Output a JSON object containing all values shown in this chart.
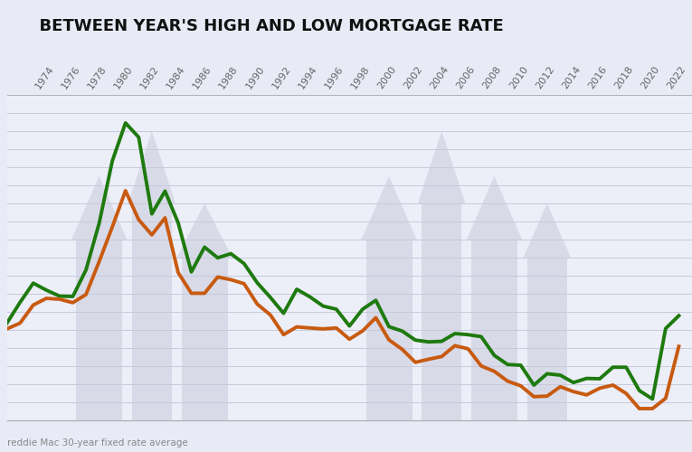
{
  "title": "  BETWEEN YEAR'S HIGH AND LOW MORTGAGE RATE",
  "source_label": "reddie Mac 30-year fixed rate average",
  "bg_color": "#e8eaf6",
  "plot_bg_color": "#eceef8",
  "title_color": "#111111",
  "grid_color": "#c8cadc",
  "high_color": "#1e7a0e",
  "low_color": "#c85a10",
  "line_width": 2.8,
  "years": [
    1972,
    1973,
    1974,
    1975,
    1976,
    1977,
    1978,
    1979,
    1980,
    1981,
    1982,
    1983,
    1984,
    1985,
    1986,
    1987,
    1988,
    1989,
    1990,
    1991,
    1992,
    1993,
    1994,
    1995,
    1996,
    1997,
    1998,
    1999,
    2000,
    2001,
    2002,
    2003,
    2004,
    2005,
    2006,
    2007,
    2008,
    2009,
    2010,
    2011,
    2012,
    2013,
    2014,
    2015,
    2016,
    2017,
    2018,
    2019,
    2020,
    2021,
    2022,
    2023
  ],
  "high_rates": [
    7.38,
    8.53,
    9.59,
    9.2,
    8.87,
    8.85,
    10.32,
    12.9,
    16.35,
    18.45,
    17.66,
    13.42,
    14.68,
    12.92,
    10.21,
    11.58,
    10.99,
    11.22,
    10.67,
    9.61,
    8.8,
    7.92,
    9.25,
    8.83,
    8.32,
    8.15,
    7.22,
    8.15,
    8.64,
    7.18,
    6.94,
    6.44,
    6.34,
    6.37,
    6.8,
    6.74,
    6.63,
    5.59,
    5.09,
    5.05,
    3.95,
    4.58,
    4.5,
    4.09,
    4.32,
    4.3,
    4.94,
    4.94,
    3.65,
    3.18,
    7.08,
    7.79
  ],
  "low_rates": [
    7.06,
    7.38,
    8.38,
    8.75,
    8.7,
    8.51,
    8.96,
    10.78,
    12.7,
    14.7,
    13.1,
    12.26,
    13.2,
    10.17,
    9.03,
    9.03,
    9.93,
    9.78,
    9.56,
    8.43,
    7.83,
    6.74,
    7.17,
    7.11,
    7.06,
    7.11,
    6.49,
    6.95,
    7.68,
    6.45,
    5.93,
    5.21,
    5.38,
    5.53,
    6.13,
    5.96,
    5.01,
    4.71,
    4.17,
    3.91,
    3.31,
    3.34,
    3.86,
    3.59,
    3.41,
    3.78,
    3.95,
    3.49,
    2.65,
    2.65,
    3.22,
    6.09
  ],
  "xtick_years": [
    1974,
    1976,
    1978,
    1980,
    1982,
    1984,
    1986,
    1988,
    1990,
    1992,
    1994,
    1996,
    1998,
    2000,
    2002,
    2004,
    2006,
    2008,
    2010,
    2012,
    2014,
    2016,
    2018,
    2020,
    2022
  ],
  "ylim": [
    2,
    20
  ],
  "xlim_left": 1972,
  "xlim_right": 2024
}
